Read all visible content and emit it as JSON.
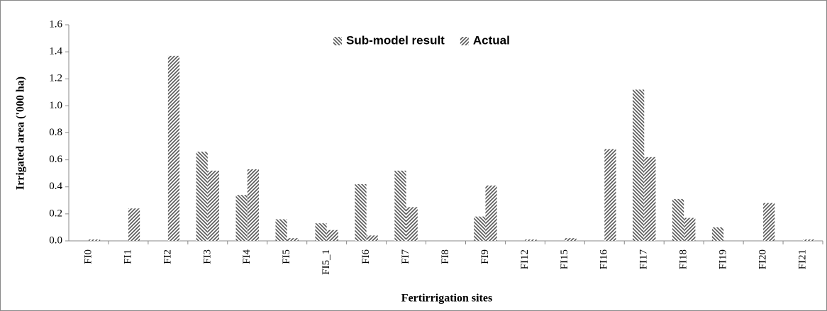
{
  "chart_data": {
    "type": "bar",
    "categories": [
      "FI0",
      "FI1",
      "FI2",
      "FI3",
      "FI4",
      "FI5",
      "FI5_1",
      "FI6",
      "FI7",
      "FI8",
      "FI9",
      "FI12",
      "FI15",
      "FI16",
      "FI17",
      "FI18",
      "FI19",
      "FI20",
      "FI21"
    ],
    "series": [
      {
        "name": "Sub-model result",
        "color": "#555555",
        "hatch": "backslash",
        "values": [
          0,
          0,
          0,
          0.66,
          0.34,
          0.16,
          0.13,
          0.42,
          0.52,
          0,
          0.18,
          0,
          0,
          0,
          1.12,
          0.31,
          0.1,
          0,
          0
        ]
      },
      {
        "name": "Actual",
        "color": "#555555",
        "hatch": "slash",
        "values": [
          0.01,
          0.24,
          1.37,
          0.52,
          0.53,
          0.02,
          0.08,
          0.04,
          0.25,
          0,
          0.41,
          0.01,
          0.02,
          0.68,
          0.62,
          0.17,
          0,
          0.28,
          0.01
        ]
      }
    ],
    "x_label": "Fertirrigation sites",
    "y_label": "Irrigated area ('000 ha)",
    "ylim": [
      0,
      1.6
    ],
    "yticks": [
      {
        "value": 0,
        "label": "0.0"
      },
      0.2,
      0.4,
      0.6,
      0.8,
      {
        "value": 1,
        "label": "1.0"
      },
      1.2,
      1.4,
      1.6
    ],
    "legend": "top",
    "grid": false
  }
}
